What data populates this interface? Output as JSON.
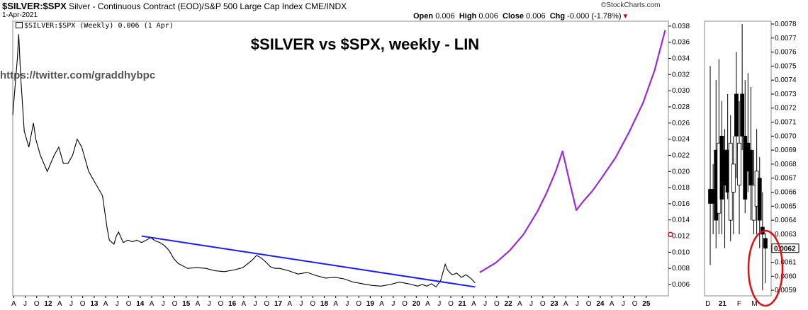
{
  "header": {
    "symbol": "$SILVER:$SPX",
    "description": "Silver - Continuous Contract (EOD)/S&P 500 Large Cap Index",
    "exchange": "CME/INDX",
    "date": "1-Apr-2021",
    "brand": "©StockCharts.com",
    "open_label": "Open",
    "open": "0.006",
    "high_label": "High",
    "high": "0.006",
    "close_label": "Close",
    "close": "0.006",
    "chg_label": "Chg",
    "chg": "-0.000 (-1.78%)",
    "legend": "$SILVER:$SPX (Weekly) 0.006 (1 Apr)"
  },
  "annotations": {
    "title": "$SILVER vs $SPX, weekly - LIN",
    "watermark": "https://twitter.com/graddhybpc"
  },
  "colors": {
    "price": "#000000",
    "trendline": "#1a1aff",
    "projection": "#9a2ad6",
    "circle": "#e01010",
    "grid": "#cccccc"
  },
  "chart_data": [
    {
      "type": "line",
      "title": "$SILVER vs $SPX, weekly - LIN",
      "scale": "linear",
      "ylim": [
        0.0046,
        0.0386
      ],
      "yticks": [
        "0.006",
        "0.008",
        "0.010",
        "0.012",
        "0.014",
        "0.016",
        "0.018",
        "0.020",
        "0.022",
        "0.024",
        "0.026",
        "0.028",
        "0.030",
        "0.032",
        "0.034",
        "0.036",
        "0.038"
      ],
      "xticks": [
        "A",
        "J",
        "O",
        "12",
        "A",
        "J",
        "O",
        "13",
        "A",
        "J",
        "O",
        "14",
        "A",
        "J",
        "O",
        "15",
        "A",
        "J",
        "O",
        "16",
        "A",
        "J",
        "O",
        "17",
        "A",
        "J",
        "O",
        "18",
        "A",
        "J",
        "O",
        "19",
        "A",
        "J",
        "O",
        "20",
        "A",
        "J",
        "O",
        "21",
        "A",
        "J",
        "O",
        "22",
        "A",
        "J",
        "O",
        "23",
        "A",
        "J",
        "O",
        "24",
        "A",
        "J",
        "O",
        "25"
      ],
      "xlim": [
        2011.2,
        2025.45
      ],
      "series": [
        {
          "name": "$SILVER:$SPX",
          "x": [
            2011.2,
            2011.3,
            2011.33,
            2011.37,
            2011.45,
            2011.55,
            2011.65,
            2011.7,
            2011.8,
            2011.95,
            2012.1,
            2012.2,
            2012.3,
            2012.4,
            2012.5,
            2012.6,
            2012.7,
            2012.75,
            2012.85,
            2012.95,
            2013.05,
            2013.15,
            2013.25,
            2013.3,
            2013.4,
            2013.45,
            2013.5,
            2013.6,
            2013.7,
            2013.8,
            2013.9,
            2014.0,
            2014.1,
            2014.2,
            2014.3,
            2014.4,
            2014.5,
            2014.6,
            2014.7,
            2014.8,
            2014.9,
            2015.0,
            2015.2,
            2015.4,
            2015.6,
            2015.8,
            2016.0,
            2016.2,
            2016.4,
            2016.5,
            2016.6,
            2016.7,
            2016.8,
            2016.9,
            2017.0,
            2017.2,
            2017.4,
            2017.6,
            2017.8,
            2018.0,
            2018.2,
            2018.4,
            2018.6,
            2018.8,
            2019.0,
            2019.2,
            2019.4,
            2019.6,
            2019.8,
            2020.0,
            2020.1,
            2020.2,
            2020.3,
            2020.4,
            2020.5,
            2020.6,
            2020.65,
            2020.75,
            2020.85,
            2020.95,
            2021.05,
            2021.15,
            2021.25
          ],
          "values": [
            0.027,
            0.034,
            0.037,
            0.032,
            0.025,
            0.023,
            0.026,
            0.024,
            0.022,
            0.02,
            0.022,
            0.023,
            0.021,
            0.021,
            0.022,
            0.024,
            0.023,
            0.022,
            0.02,
            0.019,
            0.018,
            0.017,
            0.013,
            0.0115,
            0.011,
            0.012,
            0.0125,
            0.0112,
            0.0115,
            0.0113,
            0.0115,
            0.0112,
            0.0115,
            0.0118,
            0.0114,
            0.0112,
            0.0108,
            0.0102,
            0.0092,
            0.0086,
            0.0083,
            0.008,
            0.0081,
            0.008,
            0.0077,
            0.0076,
            0.0078,
            0.0081,
            0.009,
            0.0096,
            0.0093,
            0.0088,
            0.0082,
            0.008,
            0.008,
            0.0077,
            0.0073,
            0.0075,
            0.0071,
            0.0068,
            0.0069,
            0.0067,
            0.0063,
            0.0061,
            0.0059,
            0.0058,
            0.006,
            0.0063,
            0.0061,
            0.0058,
            0.006,
            0.0058,
            0.0061,
            0.0057,
            0.0065,
            0.0085,
            0.0078,
            0.0072,
            0.0074,
            0.0069,
            0.0072,
            0.0068,
            0.0062
          ]
        },
        {
          "name": "",
          "x": [
            2014.0,
            2021.25
          ],
          "values": [
            0.012,
            0.0057
          ]
        },
        {
          "name": "",
          "x": [
            2021.35,
            2021.7,
            2022.0,
            2022.3,
            2022.6,
            2022.8,
            2023.0,
            2023.15,
            2023.3,
            2023.45,
            2023.6,
            2023.8,
            2024.0,
            2024.3,
            2024.6,
            2024.9,
            2025.15,
            2025.38
          ],
          "values": [
            0.0075,
            0.0087,
            0.0102,
            0.0122,
            0.015,
            0.0173,
            0.02,
            0.0225,
            0.0188,
            0.0152,
            0.0163,
            0.0176,
            0.0192,
            0.0217,
            0.0249,
            0.0285,
            0.0325,
            0.0375
          ]
        }
      ]
    },
    {
      "type": "bar",
      "ylim": [
        0.00586,
        0.00782
      ],
      "yticks": [
        "0.0059",
        "0.0060",
        "0.0061",
        "0.0062",
        "0.0063",
        "0.0064",
        "0.0065",
        "0.0066",
        "0.0067",
        "0.0068",
        "0.0069",
        "0.0070",
        "0.0071",
        "0.0072",
        "0.0073",
        "0.0074",
        "0.0075",
        "0.0076",
        "0.0077",
        "0.0078"
      ],
      "xticks": [
        "D",
        "21",
        "F",
        "M"
      ],
      "last_value": "0.0062",
      "candles": [
        {
          "o": 0.00662,
          "h": 0.0075,
          "l": 0.00608,
          "c": 0.00652,
          "bull": false
        },
        {
          "o": 0.00662,
          "h": 0.0068,
          "l": 0.0063,
          "c": 0.00652,
          "bull": false
        },
        {
          "o": 0.0069,
          "h": 0.0074,
          "l": 0.0062,
          "c": 0.0064,
          "bull": false
        },
        {
          "o": 0.00645,
          "h": 0.00755,
          "l": 0.0063,
          "c": 0.00695,
          "bull": true
        },
        {
          "o": 0.00655,
          "h": 0.00725,
          "l": 0.0063,
          "c": 0.007,
          "bull": false
        },
        {
          "o": 0.00665,
          "h": 0.00705,
          "l": 0.0062,
          "c": 0.0069,
          "bull": false
        },
        {
          "o": 0.0069,
          "h": 0.0073,
          "l": 0.00655,
          "c": 0.0066,
          "bull": false
        },
        {
          "o": 0.0064,
          "h": 0.00715,
          "l": 0.00625,
          "c": 0.00695,
          "bull": true
        },
        {
          "o": 0.0066,
          "h": 0.007,
          "l": 0.0063,
          "c": 0.0068,
          "bull": true
        },
        {
          "o": 0.007,
          "h": 0.0076,
          "l": 0.0067,
          "c": 0.0073,
          "bull": false
        },
        {
          "o": 0.00665,
          "h": 0.00725,
          "l": 0.0063,
          "c": 0.00695,
          "bull": true
        },
        {
          "o": 0.0073,
          "h": 0.0078,
          "l": 0.0069,
          "c": 0.007,
          "bull": false
        },
        {
          "o": 0.007,
          "h": 0.0074,
          "l": 0.00645,
          "c": 0.00655,
          "bull": false
        },
        {
          "o": 0.00675,
          "h": 0.00745,
          "l": 0.0066,
          "c": 0.00695,
          "bull": false
        },
        {
          "o": 0.00665,
          "h": 0.00735,
          "l": 0.0064,
          "c": 0.0069,
          "bull": false
        },
        {
          "o": 0.0064,
          "h": 0.0069,
          "l": 0.0063,
          "c": 0.00665,
          "bull": true
        },
        {
          "o": 0.0065,
          "h": 0.00705,
          "l": 0.0063,
          "c": 0.00675,
          "bull": true
        },
        {
          "o": 0.0067,
          "h": 0.00685,
          "l": 0.0062,
          "c": 0.0064,
          "bull": false
        },
        {
          "o": 0.00635,
          "h": 0.0066,
          "l": 0.0059,
          "c": 0.0063,
          "bull": false
        },
        {
          "o": 0.00627,
          "h": 0.00631,
          "l": 0.00595,
          "c": 0.0062,
          "bull": false
        }
      ]
    }
  ]
}
